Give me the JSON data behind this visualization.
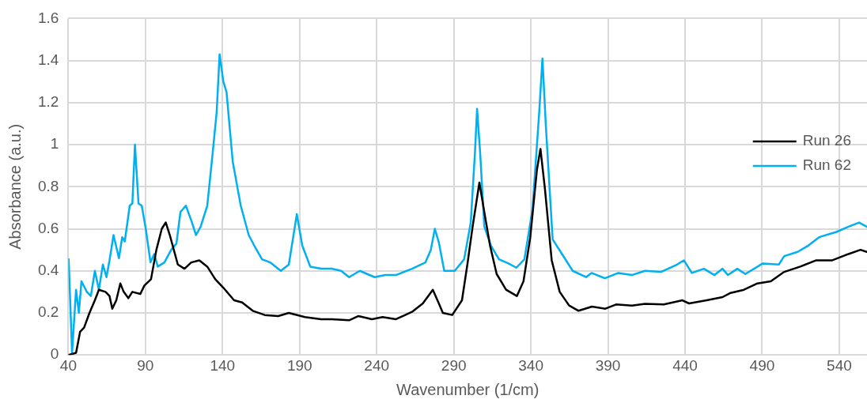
{
  "chart_data": {
    "type": "line",
    "xlabel": "Wavenumber (1/cm)",
    "ylabel": "Absorbance (a.u.)",
    "xlim": [
      40,
      558
    ],
    "xticks": [
      40,
      90,
      140,
      190,
      240,
      290,
      340,
      390,
      440,
      490,
      540
    ],
    "ylim": [
      0,
      1.6
    ],
    "yticks": [
      0,
      0.2,
      0.4,
      0.6,
      0.8,
      1,
      1.2,
      1.4,
      1.6
    ],
    "grid": true,
    "legend": "top right",
    "marker": "none",
    "line_style": "solid",
    "series": [
      {
        "name": "Run 26",
        "color": "#000000",
        "x": [
          40.2,
          45,
          47.6,
          50.2,
          53.7,
          57.2,
          59.8,
          64.1,
          66.7,
          68.5,
          71.1,
          73.7,
          75.9,
          78.9,
          81.5,
          86.7,
          89.3,
          93.6,
          97.1,
          100.6,
          103.2,
          105.8,
          111,
          115.3,
          119.7,
          124.9,
          130.1,
          135.3,
          140.5,
          147.5,
          152.7,
          159.6,
          167.4,
          176.1,
          183,
          193.4,
          203.9,
          210.8,
          222.1,
          228.2,
          236.9,
          243.8,
          252.5,
          262.9,
          269.9,
          276.4,
          280.3,
          282.9,
          289,
          295.3,
          298.8,
          302.2,
          306.6,
          310,
          313.5,
          317.8,
          323.9,
          330.9,
          335.2,
          339.6,
          343.9,
          346.2,
          349.1,
          353.5,
          358.7,
          364.8,
          370.9,
          379.6,
          388.3,
          395.2,
          405.6,
          414,
          426.2,
          438.3,
          442.6,
          454,
          464.3,
          469.5,
          478.2,
          486.9,
          495.6,
          504.3,
          514.7,
          525.1,
          535.5,
          546,
          553.8,
          557.8
        ],
        "values": [
          0,
          0.01,
          0.11,
          0.13,
          0.2,
          0.26,
          0.31,
          0.3,
          0.28,
          0.22,
          0.26,
          0.34,
          0.3,
          0.27,
          0.3,
          0.29,
          0.33,
          0.36,
          0.5,
          0.6,
          0.63,
          0.57,
          0.43,
          0.41,
          0.44,
          0.45,
          0.42,
          0.36,
          0.32,
          0.26,
          0.25,
          0.21,
          0.19,
          0.185,
          0.2,
          0.18,
          0.17,
          0.17,
          0.165,
          0.185,
          0.17,
          0.18,
          0.17,
          0.205,
          0.245,
          0.31,
          0.245,
          0.2,
          0.19,
          0.26,
          0.43,
          0.61,
          0.82,
          0.67,
          0.52,
          0.385,
          0.31,
          0.28,
          0.35,
          0.56,
          0.88,
          0.98,
          0.79,
          0.45,
          0.3,
          0.235,
          0.21,
          0.23,
          0.22,
          0.24,
          0.235,
          0.243,
          0.24,
          0.26,
          0.245,
          0.26,
          0.275,
          0.295,
          0.31,
          0.34,
          0.35,
          0.395,
          0.42,
          0.45,
          0.45,
          0.48,
          0.5,
          0.49
        ]
      },
      {
        "name": "Run 62",
        "color": "#00b0f0",
        "x": [
          40.2,
          42.4,
          45,
          46.8,
          48.5,
          52,
          54.6,
          57.2,
          59.8,
          62.4,
          64.7,
          66.7,
          69.3,
          72.8,
          74.9,
          76.6,
          79.8,
          81.5,
          83.2,
          85.5,
          87.6,
          90.2,
          93.3,
          95.7,
          98,
          102.3,
          106.7,
          110.1,
          112.7,
          116.2,
          119.7,
          122.8,
          125.8,
          130.1,
          133.6,
          136.2,
          138.1,
          140.5,
          142.6,
          146.6,
          151.8,
          157,
          161.3,
          165.6,
          170.9,
          177.8,
          183,
          188.2,
          191.7,
          196.9,
          203.9,
          210.8,
          216.9,
          222.1,
          229,
          238.6,
          245.5,
          252.5,
          262.9,
          271.6,
          275.1,
          277.7,
          280.3,
          283.8,
          290.6,
          296.7,
          301,
          303.7,
          305.1,
          307.1,
          309.8,
          314.1,
          319.3,
          325.4,
          330.6,
          335.8,
          341,
          345.4,
          347.5,
          349.7,
          354.1,
          360.2,
          367.1,
          375.8,
          379.3,
          388,
          396.7,
          405.4,
          414,
          424.4,
          434.8,
          439.2,
          444.4,
          452.2,
          459.1,
          464.3,
          467.8,
          473.9,
          479.1,
          490.4,
          500.8,
          504.3,
          513,
          519.9,
          526.9,
          538.2,
          546,
          552.9,
          557.8
        ],
        "values": [
          0.455,
          0.01,
          0.31,
          0.2,
          0.35,
          0.3,
          0.28,
          0.4,
          0.31,
          0.43,
          0.37,
          0.45,
          0.57,
          0.46,
          0.56,
          0.54,
          0.71,
          0.72,
          1,
          0.72,
          0.71,
          0.6,
          0.44,
          0.48,
          0.42,
          0.44,
          0.5,
          0.53,
          0.68,
          0.71,
          0.64,
          0.57,
          0.61,
          0.71,
          0.96,
          1.155,
          1.43,
          1.3,
          1.25,
          0.92,
          0.71,
          0.57,
          0.51,
          0.455,
          0.44,
          0.4,
          0.43,
          0.67,
          0.52,
          0.42,
          0.41,
          0.41,
          0.4,
          0.37,
          0.4,
          0.37,
          0.38,
          0.38,
          0.41,
          0.44,
          0.5,
          0.6,
          0.535,
          0.4,
          0.4,
          0.455,
          0.63,
          0.96,
          1.17,
          0.96,
          0.61,
          0.52,
          0.455,
          0.435,
          0.415,
          0.455,
          0.69,
          1.155,
          1.41,
          1.09,
          0.55,
          0.48,
          0.4,
          0.37,
          0.39,
          0.365,
          0.39,
          0.38,
          0.4,
          0.395,
          0.43,
          0.45,
          0.39,
          0.41,
          0.38,
          0.41,
          0.38,
          0.41,
          0.385,
          0.435,
          0.43,
          0.47,
          0.49,
          0.52,
          0.56,
          0.585,
          0.61,
          0.63,
          0.61
        ]
      }
    ]
  }
}
